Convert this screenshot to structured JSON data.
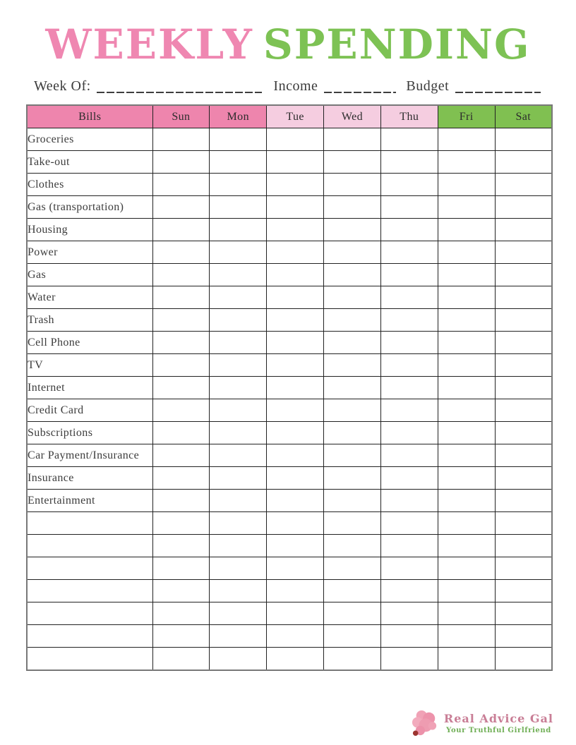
{
  "title": {
    "word1": "WEEKLY",
    "word2": "SPENDING"
  },
  "fields": {
    "week_of_label": "Week Of:",
    "income_label": "Income",
    "budget_label": "Budget"
  },
  "table": {
    "headers": [
      {
        "label": "Bills",
        "color_key": "dark_pink"
      },
      {
        "label": "Sun",
        "color_key": "dark_pink"
      },
      {
        "label": "Mon",
        "color_key": "dark_pink"
      },
      {
        "label": "Tue",
        "color_key": "light_pink"
      },
      {
        "label": "Wed",
        "color_key": "light_pink"
      },
      {
        "label": "Thu",
        "color_key": "light_pink"
      },
      {
        "label": "Fri",
        "color_key": "green"
      },
      {
        "label": "Sat",
        "color_key": "green"
      }
    ],
    "bills": [
      "Groceries",
      "Take-out",
      "Clothes",
      "Gas (transportation)",
      "Housing",
      "Power",
      "Gas",
      "Water",
      "Trash",
      "Cell Phone",
      "TV",
      "Internet",
      "Credit Card",
      "Subscriptions",
      "Car Payment/Insurance",
      "Insurance",
      "Entertainment"
    ],
    "empty_row_count": 7,
    "day_column_count": 7
  },
  "footer": {
    "brand": "Real Advice Gal",
    "tagline": "Your Truthful Girlfriend",
    "icon": "flower-icon"
  },
  "colors": {
    "title_pink": "#ef87b1",
    "title_green": "#7dc254",
    "dark_pink": "#ee85ad",
    "light_pink": "#f5cde0",
    "green": "#80c051",
    "brand_rose": "#c97e96",
    "tagline_green": "#6fae55",
    "text_dark": "#3c3c3c"
  }
}
